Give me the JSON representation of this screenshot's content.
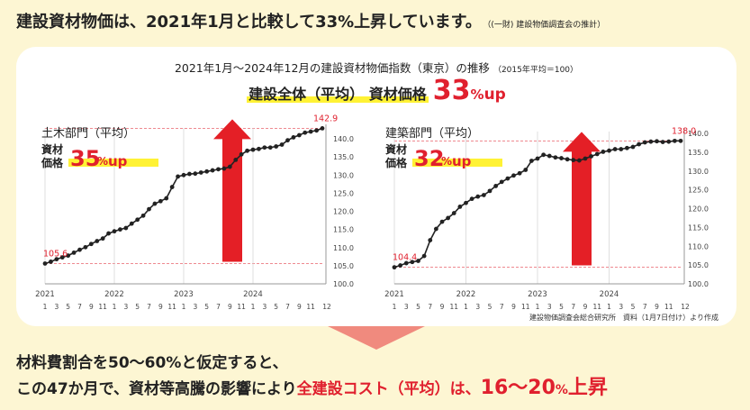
{
  "headline": {
    "text": "建設資材物価は、2021年1月と比較して33%上昇しています。",
    "note": "（(一財) 建設物価調査会の推計）"
  },
  "subtitle": {
    "text": "2021年1月〜2024年12月の建設資材物価指数（東京）の推移",
    "note": "（2015年平均＝100）"
  },
  "overall": {
    "label": "建設全体（平均） 資材価格",
    "value": "33",
    "unit": "%",
    "suffix": "up"
  },
  "source": "建設物価調査会総合研究所　資料（1月7日付け）より作成",
  "bottom": {
    "line1": "材料費割合を50〜60%と仮定すると、",
    "line2_a": "この47か月で、資材等高騰の影響により",
    "line2_b": "全建設コスト（平均）は、",
    "line2_c": "16〜20",
    "line2_d": "%",
    "line2_e": "上昇"
  },
  "colors": {
    "accent": "#e0202e",
    "highlight": "#fff235",
    "background": "#fdf6d3",
    "line": "#222222",
    "arrow": "#e41f26"
  },
  "chart_data": [
    {
      "type": "line",
      "title": "土木部門（平均）",
      "badge_label": "資材\n価格",
      "badge_value": "35",
      "badge_unit": "%",
      "badge_suffix": "up",
      "start_label": "105.6",
      "end_label": "142.9",
      "ylim": [
        100,
        142.5
      ],
      "yticks": [
        "100.0",
        "105.0",
        "110.0",
        "115.0",
        "120.0",
        "125.0",
        "130.0",
        "135.0",
        "140.0"
      ],
      "x_year_labels": [
        {
          "i": 0,
          "label": "2021"
        },
        {
          "i": 12,
          "label": "2022"
        },
        {
          "i": 24,
          "label": "2023"
        },
        {
          "i": 36,
          "label": "2024"
        }
      ],
      "x_month_labels": [
        "1",
        "3",
        "5",
        "7",
        "9",
        "11",
        "1",
        "3",
        "5",
        "7",
        "9",
        "11",
        "1",
        "3",
        "5",
        "7",
        "9",
        "11",
        "1",
        "3",
        "5",
        "7",
        "9",
        "11",
        "12"
      ],
      "values": [
        105.6,
        106.1,
        106.8,
        107.3,
        107.8,
        108.6,
        109.4,
        110.1,
        111.0,
        111.8,
        112.5,
        113.9,
        114.5,
        115.0,
        115.4,
        116.6,
        117.7,
        118.8,
        120.6,
        122.1,
        122.8,
        123.6,
        126.7,
        129.6,
        130.0,
        130.3,
        130.4,
        130.7,
        131.0,
        131.3,
        131.6,
        131.8,
        132.3,
        134.2,
        135.7,
        136.7,
        137.0,
        137.2,
        137.6,
        137.6,
        137.9,
        138.4,
        139.6,
        140.4,
        141.0,
        141.7,
        142.0,
        142.3,
        142.9
      ]
    },
    {
      "type": "line",
      "title": "建築部門（平均）",
      "badge_label": "資材\n価格",
      "badge_value": "32",
      "badge_unit": "%",
      "badge_suffix": "up",
      "start_label": "104.4",
      "end_label": "138.0",
      "ylim": [
        100,
        140
      ],
      "yticks": [
        "100.0",
        "105.0",
        "110.0",
        "115.0",
        "120.0",
        "125.0",
        "130.0",
        "135.0",
        "140.0"
      ],
      "x_year_labels": [
        {
          "i": 0,
          "label": "2021"
        },
        {
          "i": 12,
          "label": "2022"
        },
        {
          "i": 24,
          "label": "2023"
        },
        {
          "i": 36,
          "label": "2024"
        }
      ],
      "x_month_labels": [
        "1",
        "3",
        "5",
        "7",
        "9",
        "11",
        "1",
        "3",
        "5",
        "7",
        "9",
        "11",
        "1",
        "3",
        "5",
        "7",
        "9",
        "11",
        "1",
        "3",
        "5",
        "7",
        "9",
        "11",
        "12"
      ],
      "values": [
        104.4,
        104.9,
        105.5,
        105.8,
        106.1,
        107.4,
        111.6,
        114.6,
        116.5,
        117.5,
        118.8,
        120.5,
        121.5,
        122.6,
        123.2,
        123.6,
        124.7,
        126.0,
        127.1,
        128.0,
        128.8,
        129.4,
        130.3,
        132.7,
        133.3,
        134.3,
        134.0,
        133.6,
        133.4,
        133.1,
        132.9,
        132.8,
        133.3,
        133.9,
        134.5,
        135.1,
        135.4,
        135.8,
        135.8,
        136.1,
        136.4,
        137.1,
        137.6,
        137.8,
        137.9,
        137.7,
        137.8,
        138.0,
        138.0
      ]
    }
  ]
}
